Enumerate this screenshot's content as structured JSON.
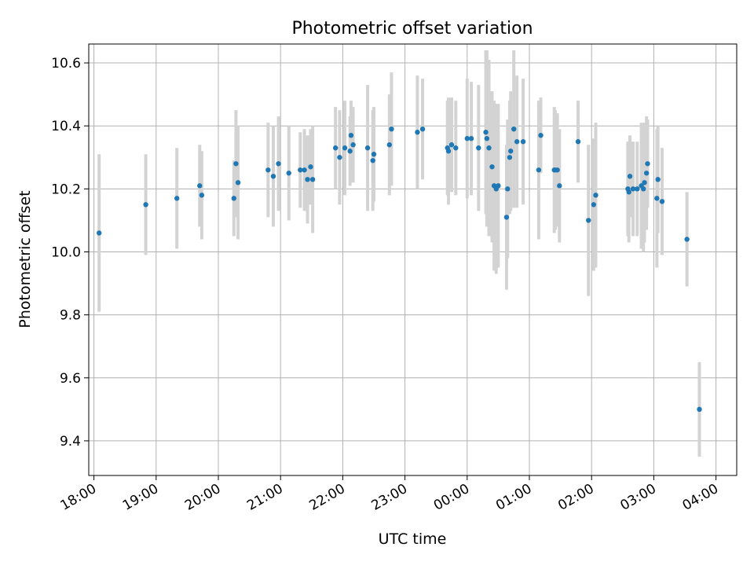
{
  "chart_data": {
    "type": "scatter",
    "title": "Photometric offset variation",
    "xlabel": "UTC time",
    "ylabel": "Photometric offset",
    "x_unit": "UTC hh:mm (spanning midnight)",
    "xlim": [
      "17:55",
      "04:20"
    ],
    "ylim": [
      9.29,
      10.66
    ],
    "yticks": [
      9.4,
      9.6,
      9.8,
      10.0,
      10.2,
      10.4,
      10.6
    ],
    "ytick_labels": [
      "9.4",
      "9.6",
      "9.8",
      "10.0",
      "10.2",
      "10.4",
      "10.6"
    ],
    "xticks": [
      "18:00",
      "19:00",
      "20:00",
      "21:00",
      "22:00",
      "23:00",
      "00:00",
      "01:00",
      "02:00",
      "03:00",
      "04:00"
    ],
    "grid": true,
    "legend": "none",
    "colors": {
      "point": "#1f77b4",
      "errorbar": "#d3d3d3",
      "grid": "#b0b0b0"
    },
    "series": [
      {
        "x": [
          "18:05",
          "18:50",
          "19:20",
          "19:42",
          "19:44",
          "20:15",
          "20:17",
          "20:19",
          "20:48",
          "20:53",
          "20:58",
          "21:08",
          "21:19",
          "21:23",
          "21:26",
          "21:29",
          "21:31",
          "21:53",
          "21:57",
          "22:02",
          "22:07",
          "22:08",
          "22:10",
          "22:24",
          "22:29",
          "22:30",
          "22:45",
          "22:47",
          "23:12",
          "23:17",
          "23:41",
          "23:42",
          "23:45",
          "23:49",
          "00:00",
          "00:04",
          "00:11",
          "00:18",
          "00:19",
          "00:21",
          "00:24",
          "00:26",
          "00:28",
          "00:30",
          "00:38",
          "00:39",
          "00:41",
          "00:42",
          "00:45",
          "00:48",
          "00:54",
          "01:09",
          "01:11",
          "01:24",
          "01:25",
          "01:27",
          "01:29",
          "01:47",
          "01:57",
          "02:02",
          "02:04",
          "02:35",
          "02:36",
          "02:37",
          "02:40",
          "02:44",
          "02:48",
          "02:50",
          "02:51",
          "02:53",
          "02:54",
          "03:03",
          "03:04",
          "03:08",
          "03:32",
          "03:44"
        ],
        "y": [
          10.06,
          10.15,
          10.17,
          10.21,
          10.18,
          10.17,
          10.28,
          10.22,
          10.26,
          10.24,
          10.28,
          10.25,
          10.26,
          10.26,
          10.23,
          10.27,
          10.23,
          10.33,
          10.3,
          10.33,
          10.32,
          10.37,
          10.34,
          10.33,
          10.29,
          10.31,
          10.34,
          10.39,
          10.38,
          10.39,
          10.33,
          10.32,
          10.34,
          10.33,
          10.36,
          10.36,
          10.33,
          10.38,
          10.36,
          10.33,
          10.27,
          10.21,
          10.2,
          10.21,
          10.11,
          10.2,
          10.3,
          10.32,
          10.39,
          10.35,
          10.35,
          10.26,
          10.37,
          10.26,
          10.26,
          10.26,
          10.21,
          10.35,
          10.1,
          10.15,
          10.18,
          10.2,
          10.19,
          10.24,
          10.2,
          10.2,
          10.21,
          10.2,
          10.22,
          10.25,
          10.28,
          10.17,
          10.23,
          10.16,
          10.04,
          9.5
        ],
        "yerr": [
          0.25,
          0.16,
          0.16,
          0.13,
          0.14,
          0.12,
          0.17,
          0.18,
          0.15,
          0.16,
          0.15,
          0.15,
          0.12,
          0.13,
          0.14,
          0.12,
          0.17,
          0.13,
          0.15,
          0.15,
          0.11,
          0.11,
          0.12,
          0.2,
          0.16,
          0.15,
          0.16,
          0.18,
          0.18,
          0.16,
          0.15,
          0.17,
          0.15,
          0.15,
          0.19,
          0.18,
          0.2,
          0.26,
          0.28,
          0.28,
          0.24,
          0.27,
          0.27,
          0.26,
          0.23,
          0.22,
          0.18,
          0.19,
          0.25,
          0.21,
          0.2,
          0.22,
          0.12,
          0.2,
          0.19,
          0.18,
          0.18,
          0.13,
          0.24,
          0.21,
          0.23,
          0.15,
          0.16,
          0.13,
          0.15,
          0.15,
          0.2,
          0.2,
          0.19,
          0.18,
          0.14,
          0.22,
          0.17,
          0.17,
          0.15,
          0.15
        ]
      }
    ]
  }
}
